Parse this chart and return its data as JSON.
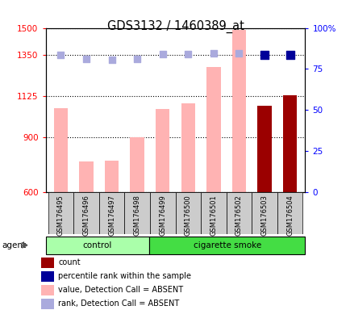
{
  "title": "GDS3132 / 1460389_at",
  "samples": [
    "GSM176495",
    "GSM176496",
    "GSM176497",
    "GSM176498",
    "GSM176499",
    "GSM176500",
    "GSM176501",
    "GSM176502",
    "GSM176503",
    "GSM176504"
  ],
  "bar_values": [
    1060,
    770,
    775,
    900,
    1055,
    1085,
    1285,
    1490,
    1075,
    1130
  ],
  "bar_colors": [
    "#ffb3b3",
    "#ffb3b3",
    "#ffb3b3",
    "#ffb3b3",
    "#ffb3b3",
    "#ffb3b3",
    "#ffb3b3",
    "#ffb3b3",
    "#9b0000",
    "#9b0000"
  ],
  "rank_dots": [
    1350,
    1330,
    1325,
    1330,
    1355,
    1355,
    1360,
    1360,
    1350,
    1350
  ],
  "rank_dot_colors": [
    "#aaaadd",
    "#aaaadd",
    "#aaaadd",
    "#aaaadd",
    "#aaaadd",
    "#aaaadd",
    "#aaaadd",
    "#aaaadd",
    "#000099",
    "#000099"
  ],
  "ylim_left": [
    600,
    1500
  ],
  "ylim_right": [
    0,
    100
  ],
  "yticks_left": [
    600,
    900,
    1125,
    1350,
    1500
  ],
  "yticks_right": [
    0,
    25,
    50,
    75,
    100
  ],
  "control_samples": 4,
  "control_label": "control",
  "treatment_label": "cigarette smoke",
  "agent_label": "agent",
  "legend_items": [
    {
      "color": "#9b0000",
      "label": "count"
    },
    {
      "color": "#000099",
      "label": "percentile rank within the sample"
    },
    {
      "color": "#ffb3b3",
      "label": "value, Detection Call = ABSENT"
    },
    {
      "color": "#aaaadd",
      "label": "rank, Detection Call = ABSENT"
    }
  ]
}
